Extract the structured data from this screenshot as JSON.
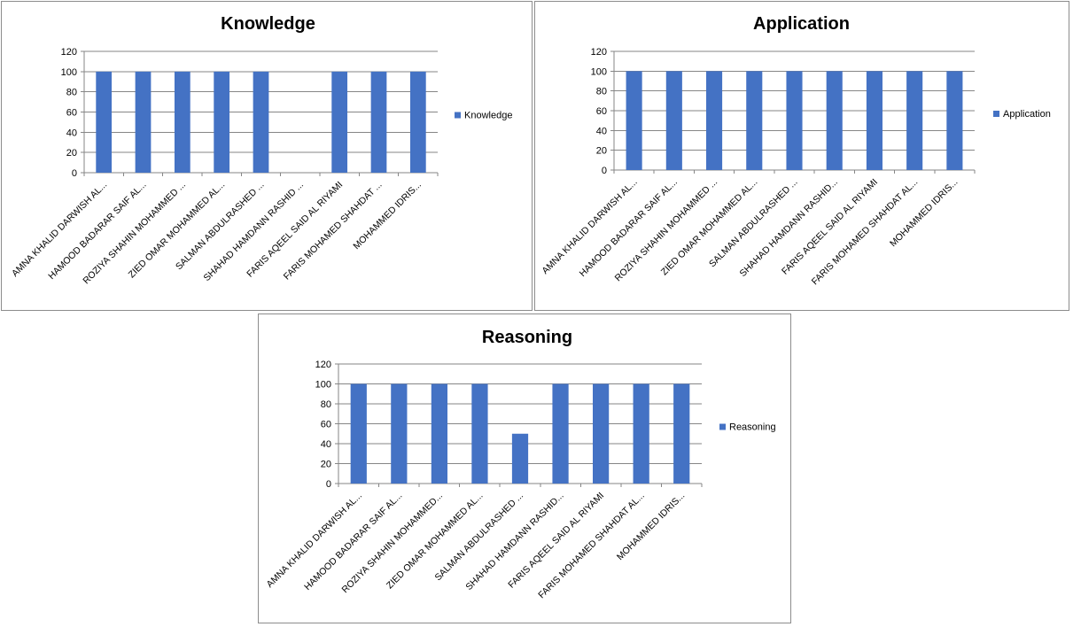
{
  "colors": {
    "bar": "#4472C4",
    "grid": "#868686",
    "axis": "#868686"
  },
  "chart_data": [
    {
      "type": "bar",
      "title": "Knowledge",
      "categories": [
        "AMNA KHALID DARWISH AL...",
        "HAMOOD BADARAR SAIF AL...",
        "ROZIYA SHAHIN MOHAMMED ...",
        "ZIED OMAR MOHAMMED AL...",
        "SALMAN ABDULRASHED ...",
        "SHAHAD HAMDANN RASHID ...",
        "FARIS AQEEL SAID AL RIYAMI",
        "FARIS MOHAMED SHAHDAT ...",
        "MOHAMMED IDRIS..."
      ],
      "series": [
        {
          "name": "Knowledge",
          "values": [
            100,
            100,
            100,
            100,
            100,
            0,
            100,
            100,
            100
          ]
        }
      ],
      "ylim": [
        0,
        120
      ],
      "yticks": [
        0,
        20,
        40,
        60,
        80,
        100,
        120
      ],
      "grid": true,
      "legend": "right"
    },
    {
      "type": "bar",
      "title": "Application",
      "categories": [
        "AMNA KHALID DARWISH AL...",
        "HAMOOD BADARAR SAIF AL...",
        "ROZIYA SHAHIN MOHAMMED ...",
        "ZIED OMAR MOHAMMED AL...",
        "SALMAN ABDULRASHED ...",
        "SHAHAD HAMDANN RASHID...",
        "FARIS AQEEL SAID AL RIYAMI",
        "FARIS MOHAMED SHAHDAT AL...",
        "MOHAMMED IDRIS..."
      ],
      "series": [
        {
          "name": "Application",
          "values": [
            100,
            100,
            100,
            100,
            100,
            100,
            100,
            100,
            100
          ]
        }
      ],
      "ylim": [
        0,
        120
      ],
      "yticks": [
        0,
        20,
        40,
        60,
        80,
        100,
        120
      ],
      "grid": true,
      "legend": "right"
    },
    {
      "type": "bar",
      "title": "Reasoning",
      "categories": [
        "AMNA KHALID DARWISH AL...",
        "HAMOOD BADARAR SAIF AL...",
        "ROZIYA SHAHIN MOHAMMED...",
        "ZIED OMAR MOHAMMED AL...",
        "SALMAN ABDULRASHED ...",
        "SHAHAD HAMDANN RASHID...",
        "FARIS AQEEL SAID AL RIYAMI",
        "FARIS MOHAMED SHAHDAT AL...",
        "MOHAMMED IDRIS..."
      ],
      "series": [
        {
          "name": "Reasoning",
          "values": [
            100,
            100,
            100,
            100,
            50,
            100,
            100,
            100,
            100
          ]
        }
      ],
      "ylim": [
        0,
        120
      ],
      "yticks": [
        0,
        20,
        40,
        60,
        80,
        100,
        120
      ],
      "grid": true,
      "legend": "right"
    }
  ]
}
